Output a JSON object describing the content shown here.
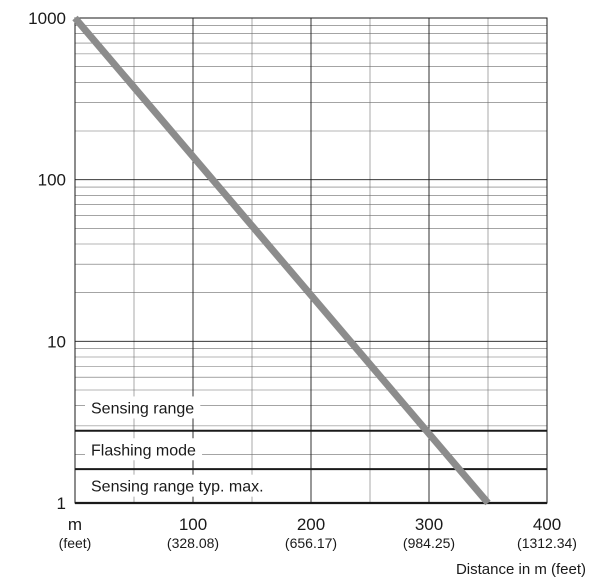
{
  "chart_data": {
    "type": "line",
    "title": "",
    "xlabel": "Distance in m (feet)",
    "ylabel": "",
    "xlim": [
      0,
      400
    ],
    "ylim": [
      1,
      1000
    ],
    "yscale": "log",
    "grid": true,
    "x_ticks": [
      {
        "value": 0,
        "label": "m",
        "sublabel": "(feet)"
      },
      {
        "value": 100,
        "label": "100",
        "sublabel": "(328.08)"
      },
      {
        "value": 200,
        "label": "200",
        "sublabel": "(656.17)"
      },
      {
        "value": 300,
        "label": "300",
        "sublabel": "(984.25)"
      },
      {
        "value": 400,
        "label": "400",
        "sublabel": "(1312.34)"
      }
    ],
    "y_ticks": [
      {
        "value": 1,
        "label": "1"
      },
      {
        "value": 10,
        "label": "10"
      },
      {
        "value": 100,
        "label": "100"
      },
      {
        "value": 1000,
        "label": "1000"
      }
    ],
    "series": [
      {
        "color": "#8c8c8c",
        "x": [
          0,
          350
        ],
        "y": [
          1000,
          1
        ]
      }
    ],
    "thresholds": [
      {
        "y": 2.8
      },
      {
        "y": 1.62
      }
    ],
    "zone_labels": [
      {
        "text": "Sensing range",
        "y": 3.9
      },
      {
        "text": "Flashing mode",
        "y": 2.15
      },
      {
        "text": "Sensing range typ. max.",
        "y": 1.28
      }
    ]
  }
}
